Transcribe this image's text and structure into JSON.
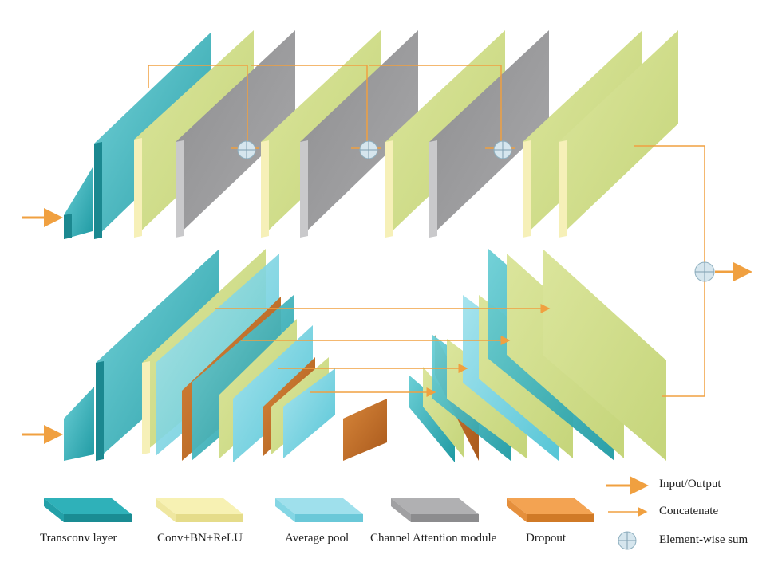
{
  "legend": {
    "transconv": "Transconv layer",
    "conv": "Conv+BN+ReLU",
    "avgpool": "Average pool",
    "channel_attention": "Channel Attention module",
    "dropout": "Dropout",
    "input_output": "Input/Output",
    "concatenate": "Concatenate",
    "element_sum": "Element-wise sum"
  },
  "colors": {
    "transconv": "#2aa7b0",
    "conv": "#f4eeb0",
    "conv_large": "#cfdc85",
    "avgpool": "#8fd9e6",
    "channel_attention": "#9a9a9c",
    "dropout": "#e98a3a",
    "arrow": "#f0a040"
  }
}
